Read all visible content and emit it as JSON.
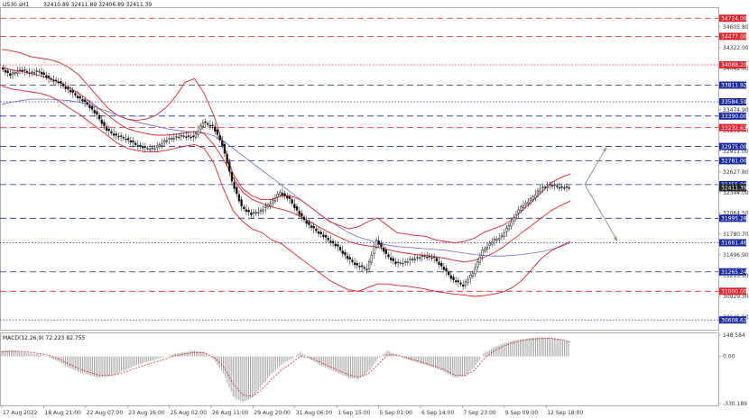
{
  "chart_data": {
    "type": "line",
    "symbol_header": "US30.sH1",
    "ohlc_header": "32410.89 32411.89 32406.89 32411.39",
    "price_axis": {
      "min": 30500,
      "max": 34850,
      "ticks": [
        "34605.80",
        "34322.00",
        "34042.00",
        "33474.90",
        "33191.00",
        "32911.00",
        "32627.80",
        "32344.00",
        "32064.50",
        "31780.70",
        "31496.90",
        "31213.10",
        "30929.30",
        "30645.50"
      ]
    },
    "time_axis": {
      "labels": [
        "17 Aug 2022",
        "18 Aug 21:00",
        "22 Aug 07:00",
        "23 Aug 16:00",
        "25 Aug 02:00",
        "26 Aug 11:00",
        "29 Aug 20:00",
        "31 Aug 06:00",
        "1 Sep 15:00",
        "5 Sep 01:00",
        "6 Sep 14:00",
        "7 Sep 23:00",
        "9 Sep 09:00",
        "12 Sep 18:00"
      ]
    },
    "levels": [
      {
        "price": 34724.0,
        "label": "34724.00",
        "color": "#e0202a",
        "dash": "dashed"
      },
      {
        "price": 34477.0,
        "label": "34477.00",
        "color": "#e0202a",
        "dash": "dashed"
      },
      {
        "price": 34088.2,
        "label": "34088.20",
        "color": "#e0202a",
        "dash": "dotted"
      },
      {
        "price": 33811.92,
        "label": "33811.92",
        "color": "#1a2aa0",
        "dash": "dashed"
      },
      {
        "price": 33584.59,
        "label": "33584.59",
        "color": "#1a2aa0",
        "dash": "dotted"
      },
      {
        "price": 33390.0,
        "label": "33390.00",
        "color": "#1a2aa0",
        "dash": "dashed"
      },
      {
        "price": 33232.63,
        "label": "33232.63",
        "color": "#e0202a",
        "dash": "dashed"
      },
      {
        "price": 32975.0,
        "label": "32975.00",
        "color": "#1a2aa0",
        "dash": "dashed"
      },
      {
        "price": 32781.0,
        "label": "32781.00",
        "color": "#1a2aa0",
        "dash": "dashed"
      },
      {
        "price": 32455.0,
        "label": "32455.00",
        "color": "#1a2aa0",
        "dash": "dashed"
      },
      {
        "price": 31995.28,
        "label": "31995.28",
        "color": "#1a2aa0",
        "dash": "dashed"
      },
      {
        "price": 31661.46,
        "label": "31661.46",
        "color": "#1a2aa0",
        "dash": "dotted"
      },
      {
        "price": 31265.24,
        "label": "31265.24",
        "color": "#1a2aa0",
        "dash": "dashed"
      },
      {
        "price": 31000.0,
        "label": "31000.00",
        "color": "#e0202a",
        "dash": "dashed"
      },
      {
        "price": 30608.62,
        "label": "30608.62",
        "color": "#1a2aa0",
        "dash": "dotted"
      }
    ],
    "current_price": {
      "price": 32411.39,
      "label": "32411.39"
    },
    "price_series": [
      34050,
      33950,
      34020,
      33980,
      34000,
      33900,
      33850,
      33750,
      33650,
      33550,
      33400,
      33200,
      33120,
      33080,
      33000,
      32950,
      32950,
      33050,
      33100,
      33120,
      33100,
      33300,
      33250,
      33000,
      32500,
      32150,
      32050,
      32100,
      32200,
      32350,
      32250,
      32050,
      31900,
      31800,
      31700,
      31600,
      31450,
      31350,
      31300,
      31700,
      31500,
      31380,
      31400,
      31450,
      31480,
      31450,
      31300,
      31150,
      31080,
      31250,
      31550,
      31680,
      31750,
      31950,
      32150,
      32250,
      32400,
      32450,
      32420,
      32411
    ],
    "bollinger": {
      "upper": [
        34300,
        34280,
        34250,
        34200,
        34180,
        34160,
        34120,
        34050,
        33950,
        33800,
        33650,
        33500,
        33400,
        33350,
        33330,
        33350,
        33400,
        33500,
        33650,
        33850,
        33900,
        33700,
        33400,
        33000,
        32600,
        32400,
        32300,
        32250,
        32250,
        32300,
        32300,
        32250,
        32150,
        32050,
        31950,
        31900,
        31850,
        31880,
        31950,
        32000,
        31900,
        31800,
        31780,
        31760,
        31750,
        31700,
        31680,
        31660,
        31680,
        31720,
        31800,
        31850,
        31900,
        31980,
        32100,
        32220,
        32350,
        32480,
        32550,
        32600
      ],
      "middle": [
        34050,
        34020,
        34000,
        33970,
        33940,
        33900,
        33850,
        33780,
        33700,
        33600,
        33500,
        33400,
        33300,
        33220,
        33180,
        33150,
        33130,
        33130,
        33140,
        33160,
        33180,
        33150,
        33000,
        32800,
        32550,
        32350,
        32250,
        32200,
        32150,
        32120,
        32080,
        32020,
        31950,
        31870,
        31800,
        31740,
        31680,
        31640,
        31620,
        31600,
        31570,
        31540,
        31520,
        31500,
        31490,
        31470,
        31450,
        31420,
        31400,
        31420,
        31460,
        31520,
        31600,
        31700,
        31800,
        31900,
        32000,
        32100,
        32170,
        32230
      ],
      "lower": [
        33800,
        33760,
        33740,
        33720,
        33700,
        33660,
        33590,
        33500,
        33420,
        33320,
        33220,
        33120,
        33020,
        32950,
        32920,
        32900,
        32900,
        32920,
        32950,
        32980,
        33000,
        32950,
        32750,
        32400,
        32100,
        31950,
        31850,
        31800,
        31700,
        31650,
        31550,
        31450,
        31350,
        31250,
        31150,
        31080,
        31020,
        31000,
        31050,
        31100,
        31100,
        31080,
        31070,
        31050,
        31030,
        31000,
        30980,
        30960,
        30950,
        30930,
        30940,
        30960,
        30990,
        31050,
        31150,
        31300,
        31450,
        31550,
        31620,
        31680
      ]
    },
    "moving_average_blue": [
      33550,
      33580,
      33600,
      33620,
      33620,
      33620,
      33610,
      33600,
      33580,
      33550,
      33500,
      33450,
      33400,
      33350,
      33310,
      33280,
      33250,
      33220,
      33200,
      33180,
      33170,
      33160,
      33120,
      33050,
      32950,
      32850,
      32750,
      32650,
      32550,
      32450,
      32350,
      32250,
      32150,
      32050,
      31960,
      31880,
      31800,
      31740,
      31700,
      31660,
      31630,
      31610,
      31600,
      31590,
      31580,
      31570,
      31560,
      31540,
      31520,
      31500,
      31490,
      31480,
      31480,
      31490,
      31500,
      31520,
      31540,
      31570,
      31610,
      31660
    ],
    "forecast": {
      "origin": 32455,
      "up_target": 32975,
      "down_target": 31690
    },
    "macd": {
      "label": "MACD(12,26,9) 72.223 82.755",
      "ticks": [
        "148.584",
        "0.00",
        "-330.189"
      ],
      "min": -330.189,
      "max": 148.584,
      "histogram": [
        40,
        45,
        35,
        20,
        10,
        -10,
        -40,
        -80,
        -110,
        -130,
        -150,
        -140,
        -120,
        -90,
        -60,
        -40,
        -20,
        0,
        20,
        30,
        40,
        30,
        -20,
        -120,
        -280,
        -320,
        -290,
        -200,
        -120,
        -60,
        -20,
        30,
        -20,
        -60,
        -90,
        -120,
        -150,
        -160,
        -110,
        -20,
        40,
        10,
        -20,
        -40,
        -60,
        -80,
        -110,
        -150,
        -140,
        -80,
        20,
        60,
        90,
        110,
        120,
        130,
        135,
        130,
        120,
        100
      ],
      "signal": [
        30,
        35,
        35,
        28,
        18,
        5,
        -20,
        -55,
        -85,
        -110,
        -130,
        -135,
        -125,
        -105,
        -80,
        -58,
        -38,
        -18,
        5,
        18,
        28,
        25,
        -5,
        -70,
        -190,
        -270,
        -280,
        -230,
        -160,
        -95,
        -50,
        0,
        -10,
        -40,
        -70,
        -100,
        -130,
        -145,
        -125,
        -60,
        10,
        10,
        -10,
        -30,
        -50,
        -70,
        -95,
        -130,
        -135,
        -100,
        -20,
        35,
        70,
        95,
        110,
        120,
        125,
        125,
        118,
        100
      ]
    }
  }
}
